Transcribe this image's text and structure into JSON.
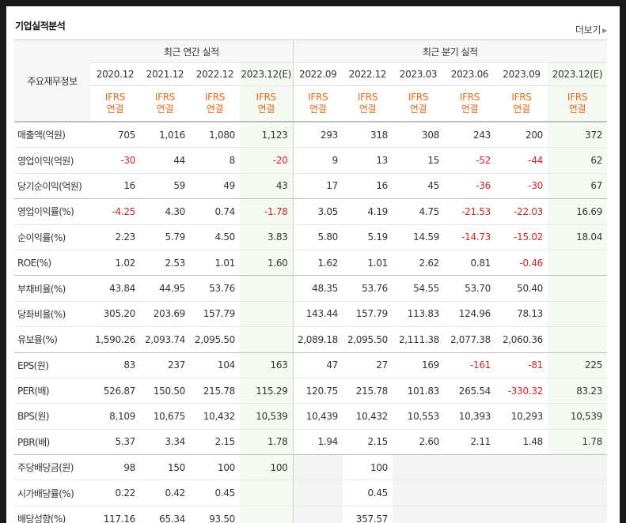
{
  "section_title": "기업실적분석",
  "more_label": "더보기",
  "header": {
    "label_head": "주요재무정보",
    "annual_group": "최근 연간 실적",
    "quarter_group": "최근 분기 실적",
    "annual_periods": [
      "2020.12",
      "2021.12",
      "2022.12",
      "2023.12(E)"
    ],
    "quarter_periods": [
      "2022.09",
      "2022.12",
      "2023.03",
      "2023.06",
      "2023.09",
      "2023.12(E)"
    ],
    "ifrs_top": "IFRS",
    "ifrs_bottom": "연결"
  },
  "rows": [
    {
      "label": "매출액(억원)",
      "values": [
        "705",
        "1,016",
        "1,080",
        "1,123",
        "293",
        "318",
        "308",
        "243",
        "200",
        "372"
      ]
    },
    {
      "label": "영업이익(억원)",
      "values": [
        "-30",
        "44",
        "8",
        "-20",
        "9",
        "13",
        "15",
        "-52",
        "-44",
        "62"
      ]
    },
    {
      "label": "당기순이익(억원)",
      "values": [
        "16",
        "59",
        "49",
        "43",
        "17",
        "16",
        "45",
        "-36",
        "-30",
        "67"
      ]
    },
    {
      "label": "영업이익률(%)",
      "values": [
        "-4.25",
        "4.30",
        "0.74",
        "-1.78",
        "3.05",
        "4.19",
        "4.75",
        "-21.53",
        "-22.03",
        "16.69"
      ]
    },
    {
      "label": "순이익률(%)",
      "values": [
        "2.23",
        "5.79",
        "4.50",
        "3.83",
        "5.80",
        "5.19",
        "14.59",
        "-14.73",
        "-15.02",
        "18.04"
      ]
    },
    {
      "label": "ROE(%)",
      "values": [
        "1.02",
        "2.53",
        "1.01",
        "1.60",
        "1.62",
        "1.01",
        "2.62",
        "0.81",
        "-0.46",
        ""
      ]
    },
    {
      "label": "부채비율(%)",
      "values": [
        "43.84",
        "44.95",
        "53.76",
        "",
        "48.35",
        "53.76",
        "54.55",
        "53.70",
        "50.40",
        ""
      ]
    },
    {
      "label": "당좌비율(%)",
      "values": [
        "305.20",
        "203.69",
        "157.79",
        "",
        "143.44",
        "157.79",
        "113.83",
        "124.96",
        "78.13",
        ""
      ]
    },
    {
      "label": "유보율(%)",
      "values": [
        "1,590.26",
        "2,093.74",
        "2,095.50",
        "",
        "2,089.18",
        "2,095.50",
        "2,111.38",
        "2,077.38",
        "2,060.36",
        ""
      ]
    },
    {
      "label": "EPS(원)",
      "values": [
        "83",
        "237",
        "104",
        "163",
        "47",
        "27",
        "169",
        "-161",
        "-81",
        "225"
      ]
    },
    {
      "label": "PER(배)",
      "values": [
        "526.87",
        "150.50",
        "215.78",
        "115.29",
        "120.75",
        "215.78",
        "101.83",
        "265.54",
        "-330.32",
        "83.23"
      ]
    },
    {
      "label": "BPS(원)",
      "values": [
        "8,109",
        "10,675",
        "10,432",
        "10,539",
        "10,439",
        "10,432",
        "10,553",
        "10,393",
        "10,293",
        "10,539"
      ]
    },
    {
      "label": "PBR(배)",
      "values": [
        "5.37",
        "3.34",
        "2.15",
        "1.78",
        "1.94",
        "2.15",
        "2.60",
        "2.11",
        "1.48",
        "1.78"
      ]
    },
    {
      "label": "주당배당금(원)",
      "values": [
        "98",
        "150",
        "100",
        "100",
        "",
        "100",
        "",
        "",
        "",
        ""
      ]
    },
    {
      "label": "시가배당률(%)",
      "values": [
        "0.22",
        "0.42",
        "0.45",
        "",
        "",
        "0.45",
        "",
        "",
        "",
        ""
      ]
    },
    {
      "label": "배당성향(%)",
      "values": [
        "117.16",
        "65.34",
        "93.50",
        "",
        "",
        "357.57",
        "",
        "",
        "",
        ""
      ]
    }
  ],
  "colors": {
    "negative": "#d12626",
    "ifrs": "#e86a19",
    "estimate_bg": "#f4faf1"
  }
}
